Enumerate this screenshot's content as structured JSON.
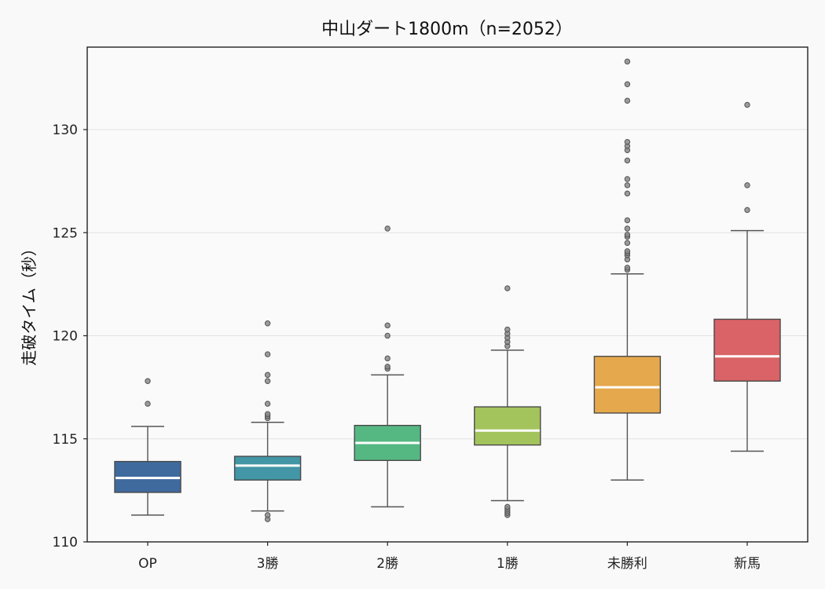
{
  "chart_data": {
    "type": "box",
    "title": "中山ダート1800m（n=2052）",
    "xlabel": "",
    "ylabel": "走破タイム（秒）",
    "ylim": [
      110,
      134
    ],
    "yticks": [
      110,
      115,
      120,
      125,
      130
    ],
    "grid": "horizontal",
    "median_color": "#ffffff",
    "outlier_color": "#777777",
    "categories": [
      "OP",
      "3勝",
      "2勝",
      "1勝",
      "未勝利",
      "新馬"
    ],
    "boxes": [
      {
        "label": "OP",
        "color": "#3f6a9e",
        "whisker_low": 111.3,
        "q1": 112.4,
        "median": 113.1,
        "q3": 113.9,
        "whisker_high": 115.6,
        "outliers": [
          116.7,
          117.8
        ]
      },
      {
        "label": "3勝",
        "color": "#4296a5",
        "whisker_low": 111.5,
        "q1": 113.0,
        "median": 113.7,
        "q3": 114.15,
        "whisker_high": 115.8,
        "outliers": [
          111.1,
          111.3,
          116.0,
          116.1,
          116.2,
          116.7,
          117.8,
          118.1,
          119.1,
          120.6
        ]
      },
      {
        "label": "2勝",
        "color": "#55b883",
        "whisker_low": 111.7,
        "q1": 113.95,
        "median": 114.8,
        "q3": 115.65,
        "whisker_high": 118.1,
        "outliers": [
          118.4,
          118.5,
          118.9,
          120.0,
          120.5,
          125.2
        ]
      },
      {
        "label": "1勝",
        "color": "#a3c45c",
        "whisker_low": 112.0,
        "q1": 114.7,
        "median": 115.4,
        "q3": 116.55,
        "whisker_high": 119.3,
        "outliers": [
          111.3,
          111.4,
          111.5,
          111.6,
          111.7,
          119.5,
          119.7,
          119.9,
          120.1,
          120.3,
          122.3
        ]
      },
      {
        "label": "未勝利",
        "color": "#e5a84c",
        "whisker_low": 113.0,
        "q1": 116.25,
        "median": 117.5,
        "q3": 119.0,
        "whisker_high": 123.0,
        "outliers": [
          123.2,
          123.3,
          123.7,
          123.9,
          124.0,
          124.1,
          124.5,
          124.8,
          124.9,
          125.2,
          125.6,
          126.9,
          127.3,
          127.6,
          128.5,
          129.0,
          129.2,
          129.4,
          131.4,
          132.2,
          133.3
        ]
      },
      {
        "label": "新馬",
        "color": "#d96366",
        "whisker_low": 114.4,
        "q1": 117.8,
        "median": 119.0,
        "q3": 120.8,
        "whisker_high": 125.1,
        "outliers": [
          126.1,
          127.3,
          131.2
        ]
      }
    ]
  }
}
